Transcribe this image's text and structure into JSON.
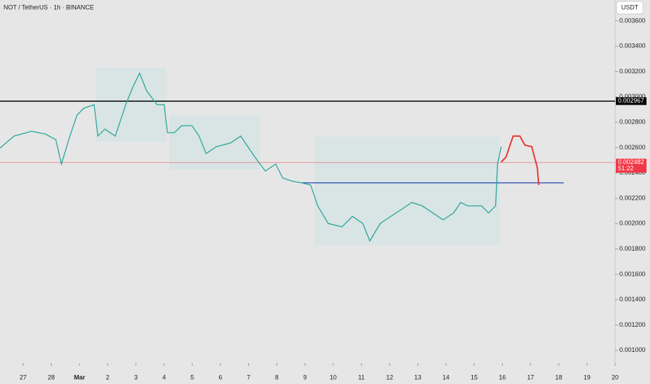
{
  "chart_data": {
    "type": "line",
    "title": "NOT / TetherUS · 1h · BINANCE",
    "currency_button": "USDT",
    "color": "#26a69a",
    "x": [
      -0.82,
      -0.32,
      0.3,
      0.79,
      1.16,
      1.36,
      1.66,
      1.91,
      2.15,
      2.52,
      2.65,
      2.9,
      3.27,
      3.64,
      3.89,
      4.13,
      4.38,
      4.75,
      5.0,
      5.12,
      5.37,
      5.62,
      5.99,
      6.24,
      6.49,
      6.86,
      7.35,
      7.72,
      7.97,
      8.22,
      8.59,
      8.96,
      9.21,
      9.58,
      9.88,
      10.2,
      10.45,
      10.82,
      11.31,
      11.68,
      12.05,
      12.3,
      12.67,
      13.04,
      13.42,
      13.79,
      14.16,
      14.53,
      14.9,
      15.27,
      15.52,
      15.77,
      16.26,
      16.51,
      16.76,
      16.83,
      16.96
    ],
    "values": [
      0.002597,
      0.002691,
      0.002729,
      0.002707,
      0.002663,
      0.00247,
      0.002691,
      0.002856,
      0.002911,
      0.002939,
      0.002691,
      0.002746,
      0.002691,
      0.002939,
      0.003077,
      0.003187,
      0.003049,
      0.002939,
      0.002939,
      0.002718,
      0.002718,
      0.002773,
      0.002773,
      0.002691,
      0.002553,
      0.002608,
      0.002636,
      0.002691,
      0.002608,
      0.002526,
      0.002415,
      0.00247,
      0.00236,
      0.002333,
      0.002322,
      0.002305,
      0.00214,
      0.002002,
      0.001975,
      0.002057,
      0.002002,
      0.001864,
      0.002002,
      0.002057,
      0.002112,
      0.002167,
      0.00214,
      0.002085,
      0.00203,
      0.002085,
      0.002167,
      0.00214,
      0.00214,
      0.002085,
      0.00214,
      0.00247,
      0.002608
    ],
    "forecast": {
      "color": "#e53935",
      "x": [
        16.96,
        17.13,
        17.38,
        17.62,
        17.8,
        18.04,
        18.24,
        18.29
      ],
      "values": [
        0.002487,
        0.002526,
        0.002691,
        0.002691,
        0.002619,
        0.002608,
        0.002443,
        0.002305
      ]
    },
    "levels": [
      {
        "value": 0.002967,
        "label": "0.002967",
        "color": "#000000"
      },
      {
        "value": 0.002482,
        "label": "0.002482",
        "countdown": "51:22",
        "color": "#f23645"
      }
    ],
    "support": {
      "value": 0.002322,
      "x": [
        9.88,
        19.18
      ],
      "color": "#1e40af"
    },
    "xlim": [
      -0.82,
      21
    ],
    "xticks": [
      {
        "value": 0,
        "label": "27"
      },
      {
        "value": 1,
        "label": "28"
      },
      {
        "value": 2,
        "label": "Mar"
      },
      {
        "value": 3,
        "label": "2"
      },
      {
        "value": 4,
        "label": "3"
      },
      {
        "value": 5,
        "label": "4"
      },
      {
        "value": 6,
        "label": "5"
      },
      {
        "value": 7,
        "label": "6"
      },
      {
        "value": 8,
        "label": "7"
      },
      {
        "value": 9,
        "label": "8"
      },
      {
        "value": 10,
        "label": "9"
      },
      {
        "value": 11,
        "label": "10"
      },
      {
        "value": 12,
        "label": "11"
      },
      {
        "value": 13,
        "label": "12"
      },
      {
        "value": 14,
        "label": "13"
      },
      {
        "value": 15,
        "label": "14"
      },
      {
        "value": 16,
        "label": "15"
      },
      {
        "value": 17,
        "label": "16"
      },
      {
        "value": 18,
        "label": "17"
      },
      {
        "value": 19,
        "label": "18"
      },
      {
        "value": 20,
        "label": "19"
      },
      {
        "value": 21,
        "label": "20"
      }
    ],
    "ylim": [
      0.0009,
      0.003765
    ],
    "yticks": [
      {
        "value": 0.001,
        "label": "0.001000"
      },
      {
        "value": 0.0012,
        "label": "0.001200"
      },
      {
        "value": 0.0014,
        "label": "0.001400"
      },
      {
        "value": 0.0016,
        "label": "0.001600"
      },
      {
        "value": 0.0018,
        "label": "0.001800"
      },
      {
        "value": 0.002,
        "label": "0.002000"
      },
      {
        "value": 0.0022,
        "label": "0.002200"
      },
      {
        "value": 0.0024,
        "label": "0.002400"
      },
      {
        "value": 0.0026,
        "label": "0.002600"
      },
      {
        "value": 0.0028,
        "label": "0.002800"
      },
      {
        "value": 0.003,
        "label": "0.003000"
      },
      {
        "value": 0.0032,
        "label": "0.003200"
      },
      {
        "value": 0.0034,
        "label": "0.003400"
      },
      {
        "value": 0.0036,
        "label": "0.003600"
      }
    ]
  }
}
